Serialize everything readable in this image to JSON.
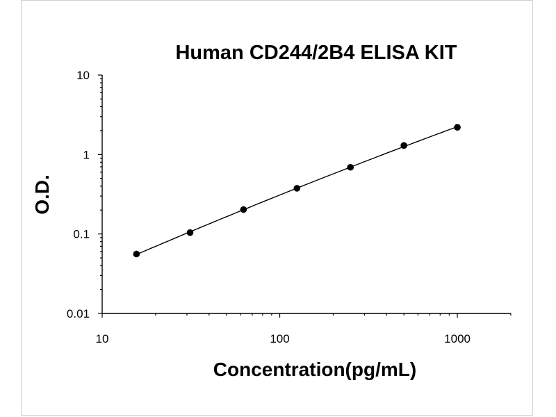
{
  "chart_data": {
    "type": "scatter",
    "title": "Human CD244/2B4 ELISA KIT",
    "xlabel": "Concentration(pg/mL)",
    "ylabel": "O.D.",
    "x_scale": "log",
    "y_scale": "log",
    "xlim": [
      10,
      2000
    ],
    "ylim": [
      0.01,
      10
    ],
    "x_ticks": [
      "10",
      "100",
      "1000"
    ],
    "y_ticks": [
      "0.01",
      "0.1",
      "1",
      "10"
    ],
    "grid": false,
    "legend": "none",
    "series": [
      {
        "x": [
          15.6,
          31.25,
          62.5,
          125,
          250,
          500,
          1000
        ],
        "y": [
          0.056,
          0.104,
          0.203,
          0.376,
          0.69,
          1.3,
          2.2
        ],
        "fit_line": true
      }
    ]
  }
}
